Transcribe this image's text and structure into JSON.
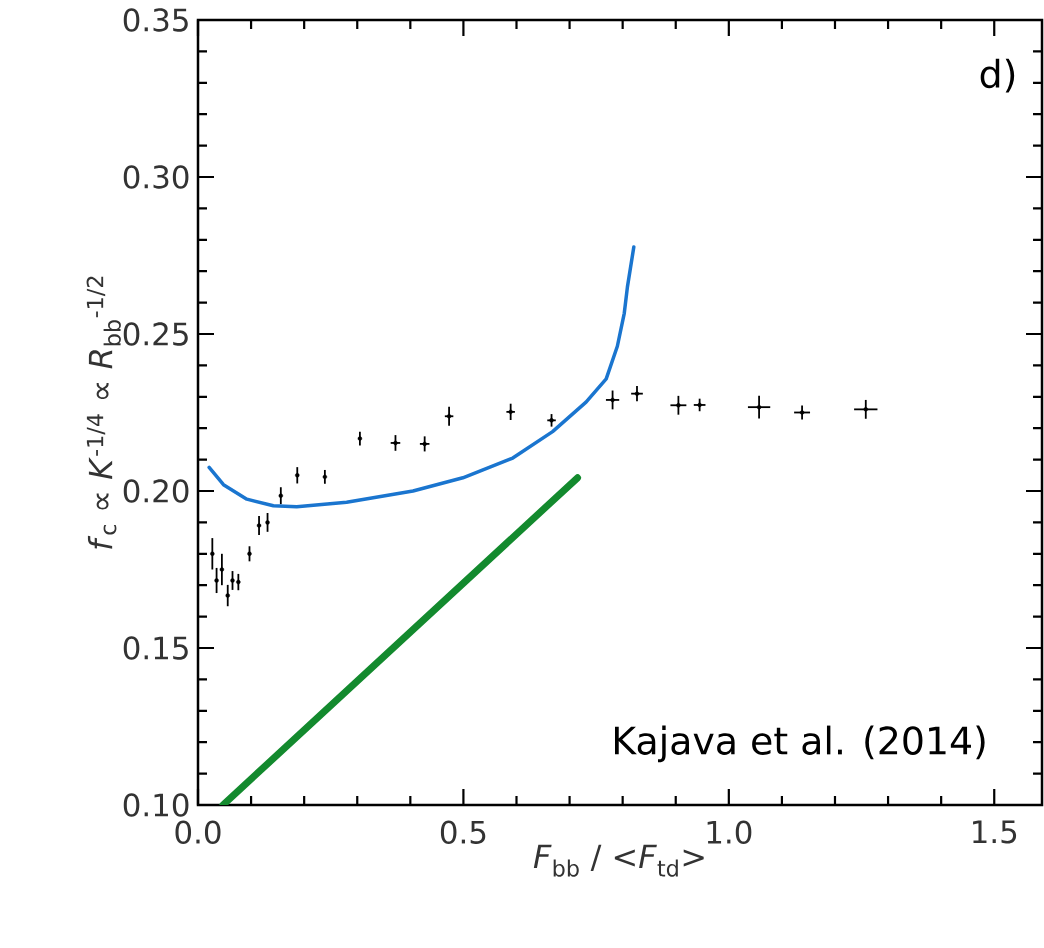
{
  "chart_data": {
    "type": "scatter",
    "xlabel": "*F*$_{bb}$ / <*F*$_{td}$>",
    "ylabel": "*f*$_{c}$ ∝ *K*$^{-1/4}$ ∝ *R*$_{bb}$$^{-1/2}$",
    "annotations": [
      "d)",
      "Kajava et al. (2014)"
    ],
    "xlim": [
      0,
      1.59
    ],
    "ylim": [
      0.1,
      0.35
    ],
    "xticks": [
      {
        "value": 0,
        "label": "0.0"
      },
      {
        "value": 0.1,
        "label": null
      },
      {
        "value": 0.2,
        "label": null
      },
      {
        "value": 0.3,
        "label": null
      },
      {
        "value": 0.4,
        "label": null
      },
      {
        "value": 0.5,
        "label": "0.5"
      },
      {
        "value": 0.6,
        "label": null
      },
      {
        "value": 0.7,
        "label": null
      },
      {
        "value": 0.8,
        "label": null
      },
      {
        "value": 0.9,
        "label": null
      },
      {
        "value": 1.0,
        "label": "1.0"
      },
      {
        "value": 1.1,
        "label": null
      },
      {
        "value": 1.2,
        "label": null
      },
      {
        "value": 1.3,
        "label": null
      },
      {
        "value": 1.4,
        "label": null
      },
      {
        "value": 1.5,
        "label": "1.5"
      }
    ],
    "yticks": [
      {
        "value": 0.1,
        "label": "0.10"
      },
      {
        "value": 0.11,
        "label": null
      },
      {
        "value": 0.12,
        "label": null
      },
      {
        "value": 0.13,
        "label": null
      },
      {
        "value": 0.14,
        "label": null
      },
      {
        "value": 0.15,
        "label": "0.15"
      },
      {
        "value": 0.16,
        "label": null
      },
      {
        "value": 0.17,
        "label": null
      },
      {
        "value": 0.18,
        "label": null
      },
      {
        "value": 0.19,
        "label": null
      },
      {
        "value": 0.2,
        "label": "0.20"
      },
      {
        "value": 0.21,
        "label": null
      },
      {
        "value": 0.22,
        "label": null
      },
      {
        "value": 0.23,
        "label": null
      },
      {
        "value": 0.24,
        "label": null
      },
      {
        "value": 0.25,
        "label": "0.25"
      },
      {
        "value": 0.26,
        "label": null
      },
      {
        "value": 0.27,
        "label": null
      },
      {
        "value": 0.28,
        "label": null
      },
      {
        "value": 0.29,
        "label": null
      },
      {
        "value": 0.3,
        "label": "0.30"
      },
      {
        "value": 0.31,
        "label": null
      },
      {
        "value": 0.32,
        "label": null
      },
      {
        "value": 0.33,
        "label": null
      },
      {
        "value": 0.34,
        "label": null
      },
      {
        "value": 0.35,
        "label": "0.35"
      }
    ],
    "series": [
      {
        "color": "#000000",
        "x": [
          0.027,
          0.035,
          0.045,
          0.056,
          0.065,
          0.076,
          0.097,
          0.115,
          0.131,
          0.156,
          0.187,
          0.239,
          0.305,
          0.372,
          0.427,
          0.473,
          0.589,
          0.666,
          0.781,
          0.827,
          0.905,
          0.945,
          1.057,
          1.138,
          1.258
        ],
        "values": [
          0.18,
          0.1715,
          0.175,
          0.1667,
          0.1715,
          0.171,
          0.18,
          0.189,
          0.19,
          0.1985,
          0.205,
          0.2045,
          0.2167,
          0.2153,
          0.215,
          0.2238,
          0.2252,
          0.2225,
          0.229,
          0.231,
          0.2273,
          0.2274,
          0.2267,
          0.225,
          0.226
        ],
        "errors": [
          0.005,
          0.004,
          0.005,
          0.0034,
          0.003,
          0.0026,
          0.0024,
          0.003,
          0.003,
          0.0027,
          0.0026,
          0.0022,
          0.0022,
          0.0025,
          0.0024,
          0.003,
          0.0026,
          0.002,
          0.003,
          0.0024,
          0.003,
          0.002,
          0.0036,
          0.0022,
          0.003
        ],
        "xerrors": [
          null,
          null,
          null,
          null,
          null,
          null,
          null,
          null,
          null,
          null,
          null,
          null,
          null,
          0.009,
          0.009,
          0.008,
          0.008,
          0.008,
          0.0125,
          0.011,
          0.015,
          0.011,
          0.021,
          0.015,
          0.022
        ]
      },
      {
        "type": "line",
        "color": "#1a75cf",
        "x": [
          0.021,
          0.048,
          0.092,
          0.142,
          0.186,
          0.28,
          0.405,
          0.499,
          0.593,
          0.668,
          0.731,
          0.769,
          0.79,
          0.803,
          0.809,
          0.821
        ],
        "values": [
          0.2075,
          0.202,
          0.1974,
          0.1953,
          0.195,
          0.1964,
          0.2,
          0.2042,
          0.2105,
          0.2189,
          0.2283,
          0.2357,
          0.2461,
          0.2566,
          0.265,
          0.2777
        ]
      },
      {
        "type": "line",
        "color": "#138a2e",
        "x": [
          0.047,
          0.715
        ],
        "values": [
          0.1,
          0.2042
        ]
      }
    ]
  }
}
